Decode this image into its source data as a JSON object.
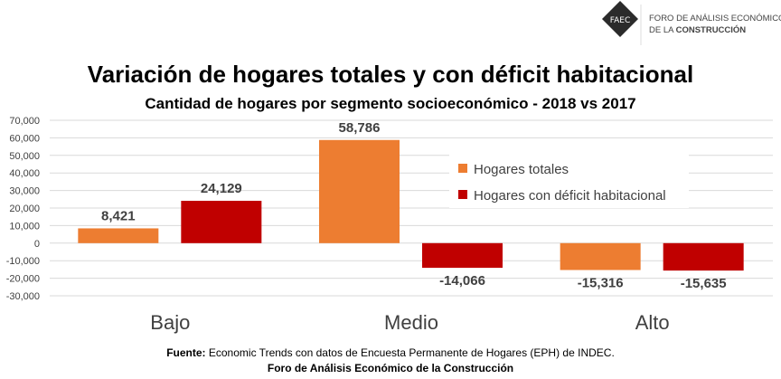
{
  "logo": {
    "mark": "FAEC",
    "line1": "FORO DE ANÁLISIS ECONÓMICO",
    "line2_prefix": "DE LA ",
    "line2_bold": "CONSTRUCCIÓN"
  },
  "chart_data": {
    "type": "bar",
    "title": "Variación de hogares totales y con déficit habitacional",
    "subtitle": "Cantidad de hogares por segmento socioeconómico - 2018 vs 2017",
    "categories": [
      "Bajo",
      "Medio",
      "Alto"
    ],
    "series": [
      {
        "name": "Hogares totales",
        "color": "#ED7D31",
        "values": [
          8421,
          58786,
          -15316
        ],
        "labels": [
          "8,421",
          "58,786",
          "-15,316"
        ]
      },
      {
        "name": "Hogares con déficit habitacional",
        "color": "#C00000",
        "values": [
          24129,
          -14066,
          -15635
        ],
        "labels": [
          "24,129",
          "-14,066",
          "-15,635"
        ]
      }
    ],
    "ylim": [
      -30000,
      70000
    ],
    "yticks": [
      70000,
      60000,
      50000,
      40000,
      30000,
      20000,
      10000,
      0,
      -10000,
      -20000,
      -30000
    ],
    "ytick_labels": [
      "70,000",
      "60,000",
      "50,000",
      "40,000",
      "30,000",
      "20,000",
      "10,000",
      "0",
      "-10,000",
      "-20,000",
      "-30,000"
    ],
    "grid": true,
    "legend": "top-right"
  },
  "footer": {
    "source_label": "Fuente:",
    "source_text": " Economic Trends con datos de Encuesta Permanente de Hogares (EPH) de INDEC.",
    "org": "Foro de Análisis Económico de la Construcción"
  }
}
